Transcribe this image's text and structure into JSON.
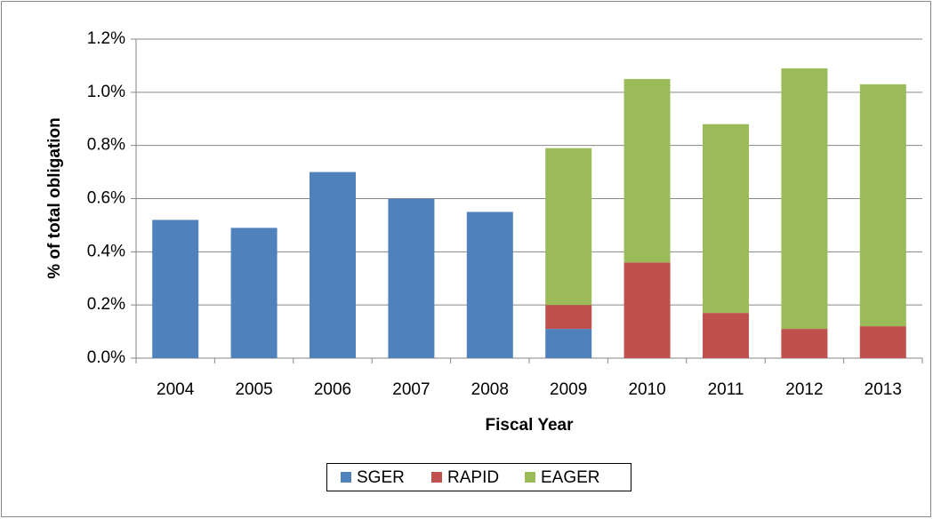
{
  "chart_data": {
    "type": "stacked-bar",
    "x_label": "Fiscal Year",
    "y_label": "% of total obligation",
    "categories": [
      "2004",
      "2005",
      "2006",
      "2007",
      "2008",
      "2009",
      "2010",
      "2011",
      "2012",
      "2013"
    ],
    "series": [
      {
        "name": "SGER",
        "color": "#4f81bd",
        "values": [
          0.52,
          0.49,
          0.7,
          0.6,
          0.55,
          0.11,
          null,
          null,
          null,
          null
        ]
      },
      {
        "name": "RAPID",
        "color": "#c0504d",
        "values": [
          null,
          null,
          null,
          null,
          null,
          0.09,
          0.36,
          0.17,
          0.11,
          0.12
        ]
      },
      {
        "name": "EAGER",
        "color": "#9bbb59",
        "values": [
          null,
          null,
          null,
          null,
          null,
          0.59,
          0.69,
          0.71,
          0.98,
          0.91
        ]
      }
    ],
    "ylim": [
      0,
      1.2
    ],
    "yticks": [
      {
        "value": 0,
        "label": "0.0%"
      },
      {
        "value": 0.2,
        "label": "0.2%"
      },
      {
        "value": 0.4,
        "label": "0.4%"
      },
      {
        "value": 0.6,
        "label": "0.6%"
      },
      {
        "value": 0.8,
        "label": "0.8%"
      },
      {
        "value": 1.0,
        "label": "1.0%"
      },
      {
        "value": 1.2,
        "label": "1.2%"
      }
    ],
    "grid": true,
    "legend": "bottom"
  }
}
